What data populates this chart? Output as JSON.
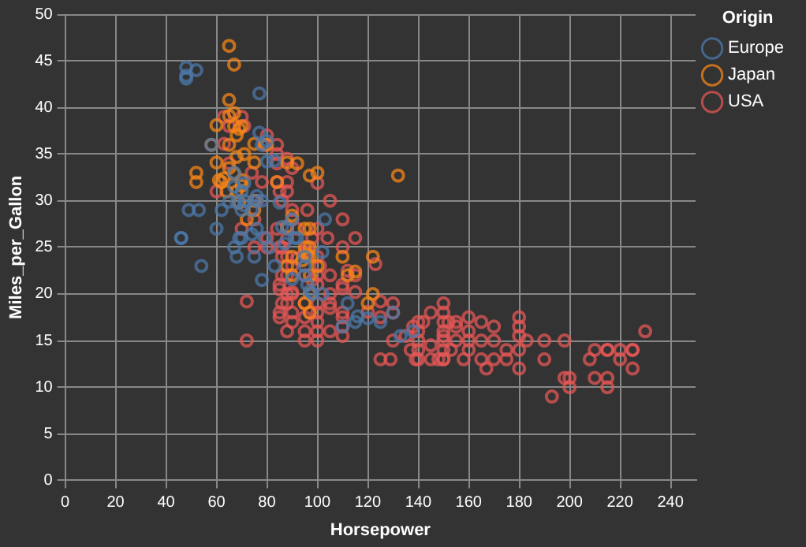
{
  "chart_data": {
    "type": "scatter",
    "xlabel": "Horsepower",
    "ylabel": "Miles_per_Gallon",
    "legend_title": "Origin",
    "legend": "top right",
    "grid": true,
    "marker": "circle",
    "xlim": [
      0,
      250
    ],
    "ylim": [
      0,
      50
    ],
    "xticks": [
      0,
      20,
      40,
      60,
      80,
      100,
      120,
      140,
      160,
      180,
      200,
      220,
      240
    ],
    "yticks": [
      0,
      5,
      10,
      15,
      20,
      25,
      30,
      35,
      40,
      45,
      50
    ],
    "series": [
      {
        "name": "Europe",
        "color": "#4c78a8",
        "x": [
          46,
          48,
          48,
          48,
          52,
          46,
          49,
          53,
          54,
          58,
          60,
          67,
          67,
          69,
          70,
          71,
          71,
          74,
          76,
          76,
          77,
          78,
          68,
          65,
          71,
          78,
          80,
          83,
          67,
          68,
          70,
          75,
          76,
          78,
          79,
          81,
          83,
          85,
          86,
          87,
          88,
          90,
          90,
          92,
          95,
          95,
          96,
          98,
          102,
          110,
          112,
          115,
          116,
          120,
          125,
          130,
          133,
          138,
          103,
          102,
          91,
          95,
          97,
          77,
          62,
          70,
          74,
          80
        ],
        "values": [
          26,
          43.1,
          44.3,
          43.4,
          44,
          26,
          29,
          29,
          23,
          36,
          27,
          31.5,
          33,
          26,
          29,
          30,
          29.5,
          29,
          30.5,
          30,
          37.3,
          30,
          29.8,
          29.9,
          31.9,
          36,
          36.4,
          34.3,
          25,
          24,
          26,
          24,
          27,
          21.5,
          26,
          25,
          23,
          29.8,
          27.2,
          25.4,
          27,
          28,
          21.6,
          26,
          24,
          22,
          21,
          20,
          24.5,
          16.5,
          19,
          17,
          17.6,
          17.4,
          17,
          18,
          15.5,
          16,
          28,
          20,
          26,
          23,
          20.3,
          41.5,
          29,
          31,
          26.4,
          34.2
        ]
      },
      {
        "name": "Japan",
        "color": "#f58518",
        "x": [
          65,
          67,
          65,
          65,
          60,
          67,
          68,
          65,
          75,
          58,
          60,
          65,
          62,
          61,
          63,
          70,
          52,
          52,
          70,
          67,
          68,
          75,
          75,
          72,
          69,
          88,
          92,
          97,
          100,
          132,
          95,
          97,
          88,
          97,
          96,
          95,
          97,
          88,
          90,
          94,
          97,
          100,
          110,
          112,
          115,
          122,
          120,
          122,
          95,
          97,
          97,
          90,
          75,
          64,
          71,
          68,
          84,
          69,
          70,
          67,
          90,
          80
        ],
        "values": [
          46.6,
          44.6,
          40.8,
          39.1,
          38.1,
          38,
          37,
          36,
          36.1,
          36,
          34.1,
          33.5,
          32,
          32.2,
          32.4,
          32.2,
          32,
          33,
          31.6,
          32.9,
          31,
          30,
          29,
          28,
          29.8,
          34.1,
          34,
          32.7,
          33,
          32.7,
          27,
          27,
          27.2,
          24,
          24.2,
          25,
          25,
          23,
          22,
          23.6,
          22,
          23,
          24,
          22,
          22.4,
          20,
          19,
          24,
          19,
          18,
          20,
          24,
          34.1,
          31,
          35,
          34.7,
          32,
          37.7,
          38,
          39.4,
          28.4,
          36
        ]
      },
      {
        "name": "USA",
        "color": "#e45756",
        "x": [
          130,
          165,
          150,
          150,
          140,
          198,
          220,
          215,
          225,
          190,
          170,
          160,
          150,
          225,
          95,
          97,
          85,
          175,
          153,
          150,
          180,
          170,
          165,
          167,
          180,
          208,
          198,
          215,
          225,
          230,
          210,
          200,
          193,
          220,
          215,
          215,
          105,
          100,
          100,
          88,
          100,
          105,
          110,
          72,
          72,
          110,
          105,
          90,
          95,
          100,
          100,
          110,
          110,
          120,
          125,
          130,
          140,
          145,
          150,
          150,
          140,
          140,
          145,
          150,
          155,
          160,
          170,
          180,
          180,
          190,
          160,
          165,
          175,
          155,
          150,
          135,
          138,
          139,
          125,
          129,
          137,
          140,
          142,
          148,
          152,
          158,
          180,
          183,
          200,
          210,
          75,
          63,
          65,
          70,
          60,
          84,
          80,
          79,
          74,
          78,
          84,
          88,
          86,
          90,
          88,
          90,
          92,
          98,
          100,
          104,
          96,
          101,
          85,
          86,
          88,
          90,
          92,
          100,
          110,
          115,
          112,
          123,
          88,
          90,
          86,
          88,
          86,
          90,
          95,
          100,
          105,
          110,
          110,
          115,
          85,
          85,
          90,
          88,
          95,
          95,
          84,
          88,
          90,
          100,
          105,
          65,
          63,
          71,
          84,
          110,
          115,
          85,
          70,
          80,
          84,
          75,
          125,
          130,
          105,
          95,
          98,
          150,
          155,
          145,
          160,
          88,
          88,
          96,
          80,
          100,
          85,
          86,
          76
        ],
        "values": [
          18,
          15,
          18,
          16,
          17,
          15,
          14,
          14,
          14,
          15,
          15,
          14,
          15,
          14,
          22,
          18,
          21,
          14,
          14,
          13,
          14,
          13,
          13,
          12,
          12,
          13,
          11,
          11,
          12,
          16,
          11,
          10,
          9,
          13,
          14,
          10,
          19,
          18,
          17,
          19,
          21,
          20,
          18,
          15,
          19.2,
          17.5,
          16,
          20.2,
          17.5,
          15,
          16,
          15.5,
          16.5,
          18.1,
          17.5,
          15,
          13,
          13,
          14,
          13,
          15,
          14,
          14.5,
          15.5,
          16.5,
          16,
          16.5,
          16.5,
          17.5,
          13,
          15,
          17,
          13,
          15,
          17,
          15.5,
          16.5,
          13,
          13,
          13,
          14,
          16,
          17,
          13,
          17,
          13,
          15.5,
          15,
          11,
          14,
          28,
          36.1,
          38,
          39,
          31,
          36,
          37,
          36,
          33,
          32,
          32,
          31,
          30,
          28,
          27,
          29,
          27,
          26,
          27,
          26,
          29,
          23,
          25,
          24,
          24,
          23,
          23.8,
          24,
          25,
          22,
          22.5,
          23.2,
          20,
          20,
          22,
          22,
          19,
          18,
          19,
          19,
          18.5,
          20.6,
          21,
          20.2,
          17.5,
          18,
          17,
          16,
          16,
          15,
          34,
          34.5,
          33.5,
          31.9,
          30,
          34,
          39,
          38,
          35,
          28,
          26,
          31,
          27,
          26,
          27,
          25,
          19.2,
          19,
          22,
          24.5,
          21.5,
          19,
          17,
          18,
          17.5,
          32,
          26,
          25,
          25,
          22,
          20.5,
          25,
          30
        ]
      }
    ]
  }
}
